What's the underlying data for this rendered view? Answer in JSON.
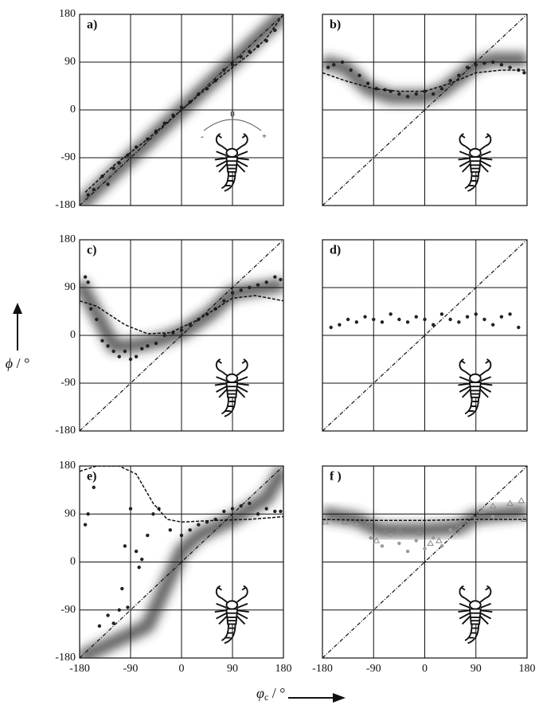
{
  "chart_data": [
    {
      "type": "scatter",
      "label": "a)",
      "xlim": [
        -180,
        180
      ],
      "ylim": [
        -180,
        180
      ],
      "xticks": [
        -180,
        -90,
        0,
        90,
        180
      ],
      "yticks": [
        -180,
        -90,
        0,
        90,
        180
      ],
      "show_xtick_labels": false,
      "show_ytick_labels": true,
      "grid": true,
      "diagonal": true,
      "annotation": {
        "center": "0",
        "minus": "-",
        "plus": "+"
      },
      "band": {
        "x": [
          -180,
          -90,
          0,
          90,
          180
        ],
        "y": [
          -180,
          -90,
          0,
          90,
          180
        ]
      },
      "series": [
        {
          "style": "points",
          "marker": "circle",
          "color": "#222",
          "x": [
            -165,
            -155,
            -140,
            -130,
            -120,
            -110,
            -95,
            -80,
            -60,
            -45,
            -30,
            -15,
            0,
            15,
            30,
            45,
            60,
            75,
            90,
            105,
            120,
            135,
            150,
            165
          ],
          "y": [
            -160,
            -150,
            -125,
            -140,
            -110,
            -100,
            -85,
            -70,
            -55,
            -40,
            -25,
            -10,
            5,
            15,
            30,
            40,
            55,
            75,
            85,
            100,
            110,
            120,
            130,
            150
          ]
        },
        {
          "style": "dashed",
          "color": "#111",
          "x": [
            -170,
            -120,
            -60,
            0,
            60,
            120,
            150,
            180
          ],
          "y": [
            -155,
            -105,
            -55,
            0,
            55,
            105,
            135,
            180
          ]
        }
      ]
    },
    {
      "type": "scatter",
      "label": "b)",
      "xlim": [
        -180,
        180
      ],
      "ylim": [
        -180,
        180
      ],
      "xticks": [
        -180,
        -90,
        0,
        90,
        180
      ],
      "yticks": [
        -180,
        -90,
        0,
        90,
        180
      ],
      "show_xtick_labels": false,
      "show_ytick_labels": false,
      "grid": true,
      "diagonal": true,
      "band": {
        "x": [
          -180,
          -140,
          -100,
          -60,
          0,
          30,
          60,
          90,
          120,
          180
        ],
        "y": [
          90,
          80,
          40,
          25,
          25,
          35,
          60,
          85,
          95,
          95
        ]
      },
      "series": [
        {
          "style": "points",
          "marker": "circle",
          "color": "#222",
          "x": [
            -170,
            -160,
            -145,
            -130,
            -115,
            -100,
            -85,
            -70,
            -60,
            -45,
            -30,
            -15,
            0,
            15,
            30,
            45,
            60,
            75,
            90,
            105,
            120,
            135,
            150,
            165,
            175
          ],
          "y": [
            80,
            85,
            90,
            75,
            65,
            50,
            40,
            38,
            35,
            30,
            25,
            30,
            35,
            30,
            40,
            55,
            65,
            80,
            85,
            88,
            90,
            85,
            80,
            75,
            70
          ]
        },
        {
          "style": "dashed",
          "color": "#111",
          "x": [
            -180,
            -140,
            -90,
            -45,
            0,
            45,
            90,
            135,
            180
          ],
          "y": [
            70,
            55,
            40,
            35,
            35,
            50,
            70,
            75,
            75
          ]
        }
      ]
    },
    {
      "type": "scatter",
      "label": "c)",
      "xlim": [
        -180,
        180
      ],
      "ylim": [
        -180,
        180
      ],
      "xticks": [
        -180,
        -90,
        0,
        90,
        180
      ],
      "yticks": [
        -180,
        -90,
        0,
        90,
        180
      ],
      "show_xtick_labels": false,
      "show_ytick_labels": true,
      "grid": true,
      "diagonal": true,
      "band": {
        "x": [
          -180,
          -150,
          -120,
          -90,
          -40,
          0,
          50,
          90,
          180
        ],
        "y": [
          100,
          40,
          -20,
          -20,
          -10,
          5,
          40,
          80,
          95
        ]
      },
      "series": [
        {
          "style": "points",
          "marker": "circle",
          "color": "#222",
          "x": [
            -170,
            -165,
            -160,
            -150,
            -140,
            -130,
            -120,
            -110,
            -100,
            -90,
            -80,
            -70,
            -60,
            -45,
            -30,
            -15,
            0,
            15,
            30,
            45,
            60,
            75,
            90,
            105,
            120,
            135,
            150,
            165,
            175
          ],
          "y": [
            110,
            100,
            50,
            30,
            -10,
            -20,
            -30,
            -40,
            -30,
            -45,
            -40,
            -25,
            -20,
            -15,
            0,
            5,
            10,
            20,
            30,
            40,
            50,
            65,
            80,
            85,
            90,
            95,
            100,
            110,
            105
          ]
        },
        {
          "style": "dashed",
          "color": "#111",
          "x": [
            -180,
            -150,
            -100,
            -60,
            -20,
            30,
            90,
            130,
            180
          ],
          "y": [
            65,
            55,
            20,
            3,
            5,
            30,
            70,
            75,
            65
          ]
        }
      ]
    },
    {
      "type": "scatter",
      "label": "d)",
      "xlim": [
        -180,
        180
      ],
      "ylim": [
        -180,
        180
      ],
      "xticks": [
        -180,
        -90,
        0,
        90,
        180
      ],
      "yticks": [
        -180,
        -90,
        0,
        90,
        180
      ],
      "show_xtick_labels": false,
      "show_ytick_labels": false,
      "grid": true,
      "diagonal": true,
      "band": {
        "x": [
          -180,
          180
        ],
        "y": [
          30,
          30
        ]
      },
      "series": [
        {
          "style": "points",
          "marker": "circle",
          "color": "#222",
          "x": [
            -165,
            -150,
            -135,
            -120,
            -105,
            -90,
            -75,
            -60,
            -45,
            -30,
            -15,
            0,
            15,
            30,
            45,
            60,
            75,
            90,
            105,
            120,
            135,
            150,
            165
          ],
          "y": [
            15,
            20,
            30,
            25,
            35,
            30,
            25,
            40,
            30,
            25,
            35,
            30,
            20,
            40,
            30,
            25,
            35,
            40,
            30,
            20,
            35,
            40,
            15
          ]
        }
      ]
    },
    {
      "type": "scatter",
      "label": "e)",
      "xlim": [
        -180,
        180
      ],
      "ylim": [
        -180,
        180
      ],
      "xticks": [
        -180,
        -90,
        0,
        90,
        180
      ],
      "yticks": [
        -180,
        -90,
        0,
        90,
        180
      ],
      "show_xtick_labels": true,
      "show_ytick_labels": true,
      "grid": true,
      "diagonal": true,
      "band": {
        "x": [
          -180,
          -60,
          0,
          30,
          90,
          150,
          180
        ],
        "y": [
          -180,
          -120,
          20,
          50,
          80,
          120,
          175
        ]
      },
      "series": [
        {
          "style": "points",
          "marker": "circle",
          "color": "#222",
          "x": [
            -170,
            -165,
            -155,
            -145,
            -130,
            -120,
            -110,
            -105,
            -100,
            -95,
            -90,
            -80,
            -75,
            -70,
            -60,
            -50,
            -40,
            -20,
            0,
            15,
            30,
            45,
            60,
            75,
            90,
            105,
            120,
            135,
            150,
            165,
            175
          ],
          "y": [
            70,
            90,
            140,
            -120,
            -100,
            -115,
            -90,
            -50,
            30,
            -85,
            100,
            20,
            -10,
            5,
            50,
            90,
            100,
            60,
            50,
            60,
            70,
            75,
            80,
            95,
            100,
            105,
            110,
            90,
            100,
            95,
            95
          ]
        },
        {
          "style": "dashed",
          "color": "#111",
          "x": [
            -180,
            -150,
            -110,
            -80,
            -50,
            -25,
            0,
            60,
            120,
            180
          ],
          "y": [
            170,
            180,
            180,
            165,
            110,
            80,
            75,
            78,
            80,
            85
          ]
        }
      ]
    },
    {
      "type": "scatter",
      "label": "f )",
      "xlim": [
        -180,
        180
      ],
      "ylim": [
        -180,
        180
      ],
      "xticks": [
        -180,
        -90,
        0,
        90,
        180
      ],
      "yticks": [
        -180,
        -90,
        0,
        90,
        180
      ],
      "show_xtick_labels": true,
      "show_ytick_labels": false,
      "grid": true,
      "diagonal": true,
      "band": {
        "x": [
          -180,
          -120,
          -80,
          0,
          60,
          90,
          180
        ],
        "y": [
          90,
          80,
          60,
          60,
          65,
          85,
          95
        ]
      },
      "series": [
        {
          "style": "points",
          "marker": "circle",
          "color": "#999",
          "x": [
            -160,
            -120,
            -95,
            -75,
            -60,
            -45,
            -30,
            -15,
            0,
            15,
            30,
            45,
            60,
            90,
            120
          ],
          "y": [
            80,
            70,
            45,
            30,
            50,
            35,
            20,
            40,
            25,
            45,
            30,
            60,
            55,
            80,
            85
          ]
        },
        {
          "style": "points",
          "marker": "triangle",
          "color": "#888",
          "x": [
            -175,
            -140,
            -100,
            -85,
            -70,
            -45,
            -10,
            10,
            25,
            60,
            80,
            100,
            120,
            150,
            170,
            175
          ],
          "y": [
            75,
            75,
            70,
            40,
            55,
            60,
            55,
            35,
            40,
            70,
            80,
            95,
            105,
            110,
            115,
            80
          ]
        },
        {
          "style": "dashed",
          "color": "#111",
          "x": [
            -180,
            -90,
            0,
            90,
            180
          ],
          "y": [
            80,
            78,
            78,
            80,
            80
          ]
        }
      ]
    }
  ],
  "y_label": {
    "symbol": "ϕ",
    "unit": " / °"
  },
  "x_label": {
    "symbol": "φ",
    "sub": "c",
    "unit": " / °"
  }
}
